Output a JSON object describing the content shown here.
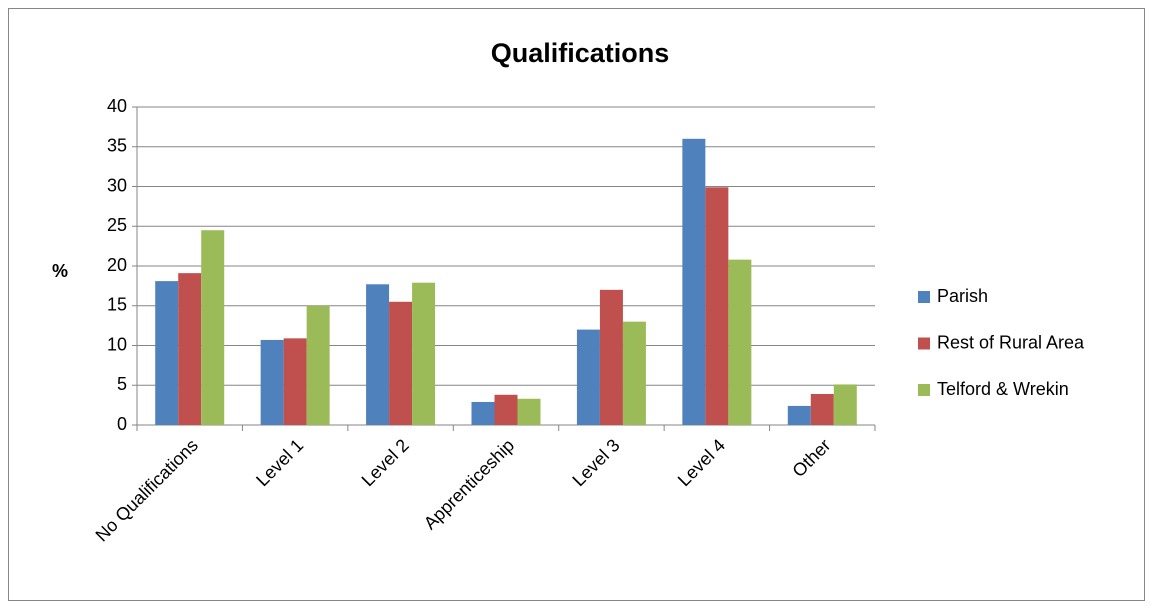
{
  "chart_data": {
    "type": "bar",
    "title": "Qualifications",
    "y_label": "%",
    "categories": [
      "No Qualifications",
      "Level 1",
      "Level 2",
      "Apprenticeship",
      "Level 3",
      "Level 4",
      "Other"
    ],
    "series": [
      {
        "name": "Parish",
        "color": "#4f81bd",
        "values": [
          18.1,
          10.7,
          17.7,
          2.9,
          12.0,
          36.0,
          2.4
        ]
      },
      {
        "name": "Rest of Rural Area",
        "color": "#c0504d",
        "values": [
          19.1,
          10.9,
          15.5,
          3.8,
          17.0,
          29.9,
          3.9
        ]
      },
      {
        "name": "Telford & Wrekin",
        "color": "#9bbb59",
        "values": [
          24.5,
          15.0,
          17.9,
          3.3,
          13.0,
          20.8,
          5.1
        ]
      }
    ],
    "ylim": [
      0,
      40
    ],
    "yticks": [
      0,
      5,
      10,
      15,
      20,
      25,
      30,
      35,
      40
    ],
    "grid": true,
    "legend": "right"
  }
}
